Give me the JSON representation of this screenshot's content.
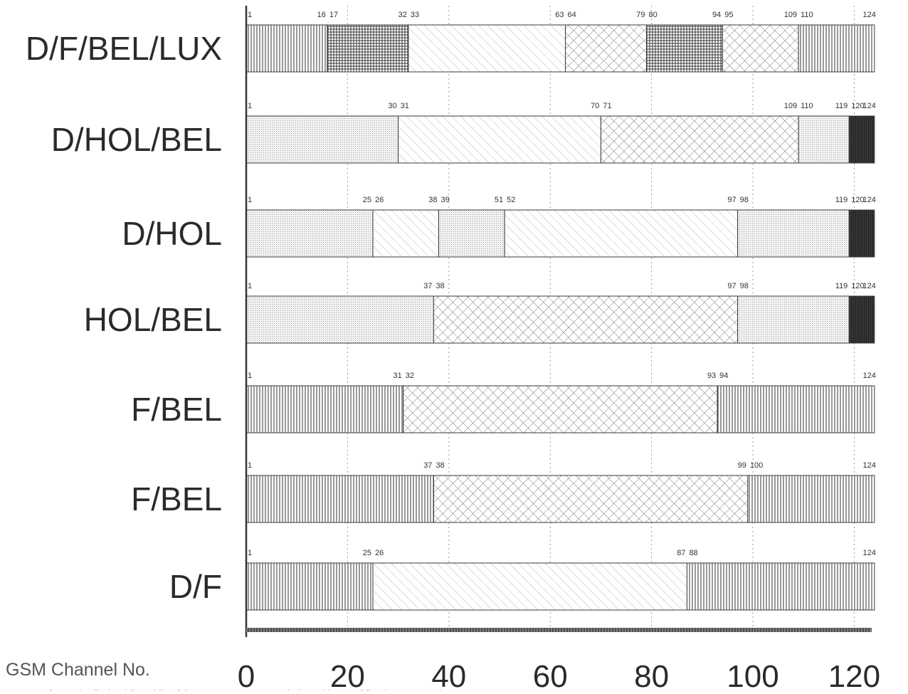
{
  "chart_data": {
    "type": "bar",
    "orientation": "horizontal-stacked-ranges",
    "xlabel": "GSM Channel No.",
    "xlim": [
      0,
      124
    ],
    "xticks": [
      0,
      20,
      40,
      60,
      80,
      100,
      120
    ],
    "grid": true,
    "grid_lines_x": [
      20,
      40,
      60,
      80,
      100,
      120
    ],
    "footnote": "as far as the Federal Republic of Germany are concerned, the evidence of fixed access stations",
    "patterns": {
      "vertical": "vertical hatch",
      "grid": "dense grid hatch",
      "diagonal": "diagonal hatch",
      "crosshatch": "crosshatch",
      "dots": "dotted",
      "solid": "dark solid"
    },
    "rows": [
      {
        "label": "D/F/BEL/LUX",
        "segments": [
          {
            "start": 1,
            "end": 16,
            "pattern": "vertical"
          },
          {
            "start": 17,
            "end": 32,
            "pattern": "grid"
          },
          {
            "start": 33,
            "end": 63,
            "pattern": "diagonal"
          },
          {
            "start": 64,
            "end": 79,
            "pattern": "crosshatch"
          },
          {
            "start": 80,
            "end": 94,
            "pattern": "grid"
          },
          {
            "start": 95,
            "end": 109,
            "pattern": "crosshatch"
          },
          {
            "start": 110,
            "end": 124,
            "pattern": "vertical"
          }
        ],
        "boundary_labels": [
          "1",
          "16",
          "17",
          "32",
          "33",
          "63",
          "64",
          "79",
          "80",
          "94",
          "95",
          "109",
          "110",
          "124"
        ]
      },
      {
        "label": "D/HOL/BEL",
        "segments": [
          {
            "start": 1,
            "end": 30,
            "pattern": "dots"
          },
          {
            "start": 31,
            "end": 70,
            "pattern": "diagonal"
          },
          {
            "start": 71,
            "end": 109,
            "pattern": "crosshatch"
          },
          {
            "start": 110,
            "end": 119,
            "pattern": "dots"
          },
          {
            "start": 120,
            "end": 124,
            "pattern": "solid"
          }
        ],
        "boundary_labels": [
          "1",
          "30",
          "31",
          "70",
          "71",
          "109",
          "110",
          "119",
          "120",
          "124"
        ]
      },
      {
        "label": "D/HOL",
        "segments": [
          {
            "start": 1,
            "end": 25,
            "pattern": "dots"
          },
          {
            "start": 26,
            "end": 38,
            "pattern": "diagonal"
          },
          {
            "start": 39,
            "end": 51,
            "pattern": "dots"
          },
          {
            "start": 52,
            "end": 97,
            "pattern": "diagonal"
          },
          {
            "start": 98,
            "end": 119,
            "pattern": "dots"
          },
          {
            "start": 120,
            "end": 124,
            "pattern": "solid"
          }
        ],
        "boundary_labels": [
          "1",
          "25",
          "26",
          "38",
          "39",
          "51",
          "52",
          "97",
          "98",
          "119",
          "120",
          "124"
        ]
      },
      {
        "label": "HOL/BEL",
        "segments": [
          {
            "start": 1,
            "end": 37,
            "pattern": "dots"
          },
          {
            "start": 38,
            "end": 97,
            "pattern": "crosshatch"
          },
          {
            "start": 98,
            "end": 119,
            "pattern": "dots"
          },
          {
            "start": 120,
            "end": 124,
            "pattern": "solid"
          }
        ],
        "boundary_labels": [
          "1",
          "37",
          "38",
          "97",
          "98",
          "119",
          "120",
          "124"
        ]
      },
      {
        "label": "F/BEL",
        "segments": [
          {
            "start": 1,
            "end": 31,
            "pattern": "vertical"
          },
          {
            "start": 32,
            "end": 93,
            "pattern": "crosshatch"
          },
          {
            "start": 94,
            "end": 124,
            "pattern": "vertical"
          }
        ],
        "boundary_labels": [
          "1",
          "31",
          "32",
          "93",
          "94",
          "124"
        ]
      },
      {
        "label": "F/BEL",
        "segments": [
          {
            "start": 1,
            "end": 37,
            "pattern": "vertical"
          },
          {
            "start": 38,
            "end": 99,
            "pattern": "crosshatch"
          },
          {
            "start": 100,
            "end": 124,
            "pattern": "vertical"
          }
        ],
        "boundary_labels": [
          "1",
          "37",
          "38",
          "99",
          "100",
          "124"
        ]
      },
      {
        "label": "D/F",
        "segments": [
          {
            "start": 1,
            "end": 25,
            "pattern": "vertical"
          },
          {
            "start": 26,
            "end": 87,
            "pattern": "diagonal"
          },
          {
            "start": 88,
            "end": 124,
            "pattern": "vertical"
          }
        ],
        "boundary_labels": [
          "1",
          "25",
          "26",
          "87",
          "88",
          "124"
        ]
      }
    ]
  }
}
